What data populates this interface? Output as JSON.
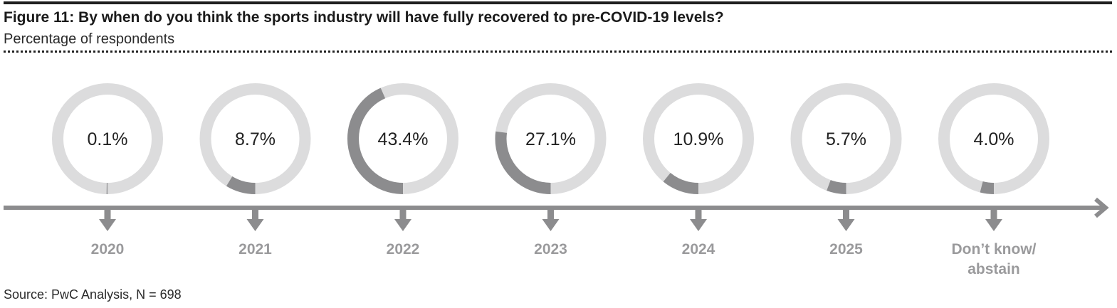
{
  "header": {
    "title": "Figure 11: By when do you think the sports industry will have fully recovered to pre-COVID-19 levels?",
    "subtitle": "Percentage of respondents"
  },
  "footer": {
    "source": "Source: PwC Analysis, N = 698"
  },
  "colors": {
    "ring_track": "#dcdcdd",
    "ring_fill": "#8c8c8e",
    "timeline": "#8c8c8e",
    "year_label": "#9a9a9c",
    "value_text": "#222222"
  },
  "chart_data": {
    "type": "donut",
    "unit": "%",
    "categories": [
      "2020",
      "2021",
      "2022",
      "2023",
      "2024",
      "2025",
      "Don’t know/ abstain"
    ],
    "category_lines": [
      [
        "2020"
      ],
      [
        "2021"
      ],
      [
        "2022"
      ],
      [
        "2023"
      ],
      [
        "2024"
      ],
      [
        "2025"
      ],
      [
        "Don’t know/",
        "abstain"
      ]
    ],
    "values": [
      0.1,
      8.7,
      43.4,
      27.1,
      10.9,
      5.7,
      4.0
    ],
    "value_labels": [
      "0.1%",
      "8.7%",
      "43.4%",
      "27.1%",
      "10.9%",
      "5.7%",
      "4.0%"
    ],
    "legend": "none",
    "grid": false
  }
}
